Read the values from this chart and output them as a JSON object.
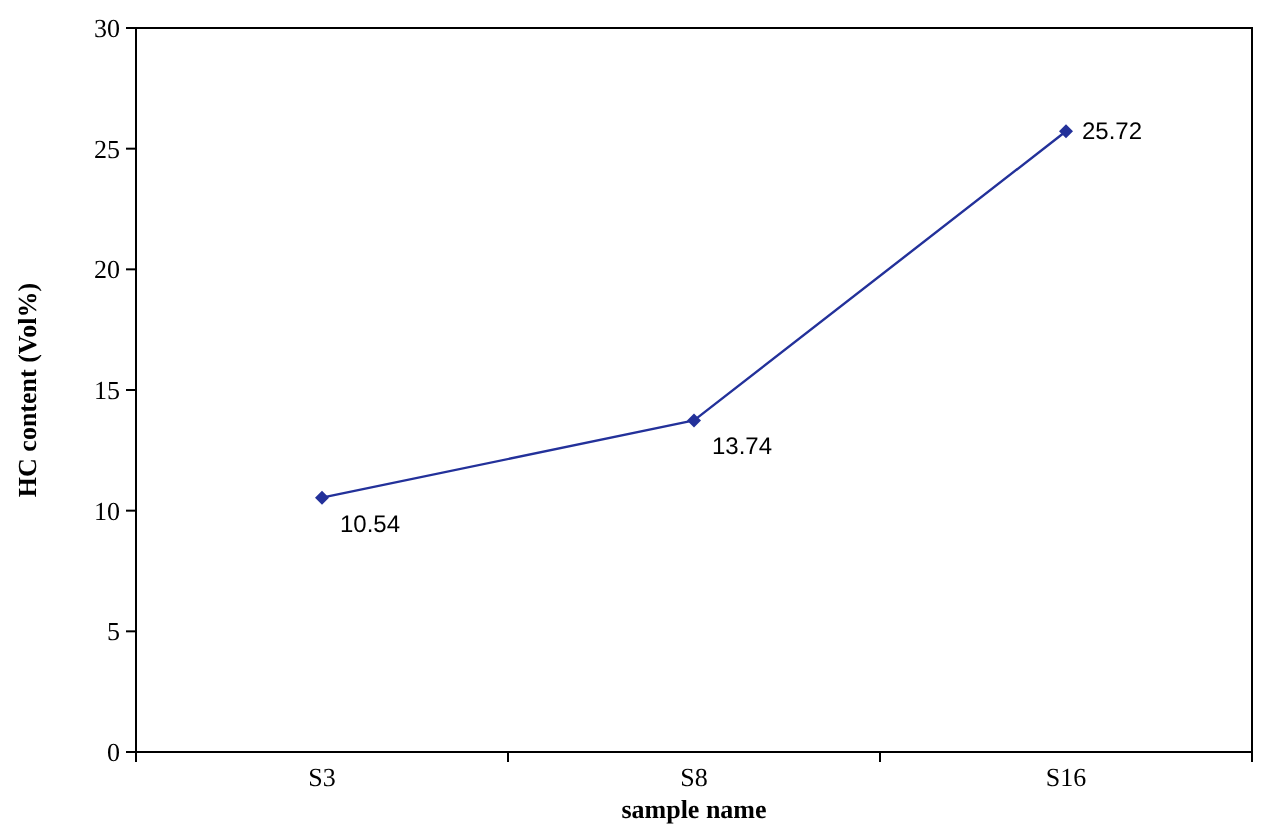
{
  "chart_data": {
    "type": "line",
    "xlabel": "sample name",
    "ylabel": "HC content (Vol%)",
    "categories": [
      "S3",
      "S8",
      "S16"
    ],
    "series": [
      {
        "color": "#23319a",
        "values": [
          10.54,
          13.74,
          25.72
        ]
      }
    ],
    "ylim": [
      0,
      30
    ],
    "yticks": [
      0,
      5,
      10,
      15,
      20,
      25,
      30
    ],
    "marker": "diamond",
    "data_labels": true,
    "grid": false
  }
}
